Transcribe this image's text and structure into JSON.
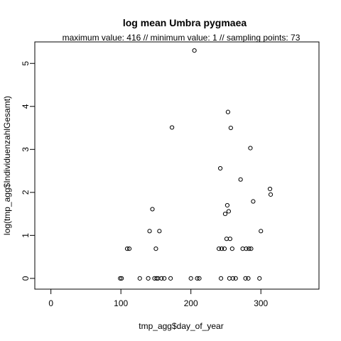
{
  "chart_data": {
    "type": "scatter",
    "title": "log mean Umbra pygmaea",
    "subtitle": "maximum value: 416  //  minimum value: 1  // sampling points: 73",
    "xlabel": "tmp_agg$day_of_year",
    "ylabel": "log(tmp_agg$IndividuenzahlGesamt)",
    "xlim": [
      -23,
      383
    ],
    "ylim": [
      -0.25,
      5.5
    ],
    "xticks": [
      0,
      100,
      200,
      300
    ],
    "yticks": [
      0,
      1,
      2,
      3,
      4,
      5
    ],
    "grid": false,
    "marker": "open-circle",
    "points": [
      {
        "x": 99,
        "y": 0
      },
      {
        "x": 101,
        "y": 0
      },
      {
        "x": 109,
        "y": 0.69
      },
      {
        "x": 112,
        "y": 0.69
      },
      {
        "x": 127,
        "y": 0
      },
      {
        "x": 139,
        "y": 0
      },
      {
        "x": 141,
        "y": 1.1
      },
      {
        "x": 145,
        "y": 1.61
      },
      {
        "x": 148,
        "y": 0
      },
      {
        "x": 150,
        "y": 0.69
      },
      {
        "x": 151,
        "y": 0
      },
      {
        "x": 153,
        "y": 0
      },
      {
        "x": 155,
        "y": 1.1
      },
      {
        "x": 158,
        "y": 0
      },
      {
        "x": 162,
        "y": 0
      },
      {
        "x": 171,
        "y": 0
      },
      {
        "x": 173,
        "y": 3.51
      },
      {
        "x": 200,
        "y": 0
      },
      {
        "x": 205,
        "y": 5.3
      },
      {
        "x": 209,
        "y": 0
      },
      {
        "x": 212,
        "y": 0
      },
      {
        "x": 240,
        "y": 0.69
      },
      {
        "x": 242,
        "y": 2.56
      },
      {
        "x": 243,
        "y": 0
      },
      {
        "x": 244,
        "y": 0.69
      },
      {
        "x": 248,
        "y": 0.69
      },
      {
        "x": 249,
        "y": 1.5
      },
      {
        "x": 251,
        "y": 0.92
      },
      {
        "x": 252,
        "y": 1.7
      },
      {
        "x": 253,
        "y": 3.87
      },
      {
        "x": 254,
        "y": 1.56
      },
      {
        "x": 255,
        "y": 0
      },
      {
        "x": 256,
        "y": 0.92
      },
      {
        "x": 257,
        "y": 3.5
      },
      {
        "x": 259,
        "y": 0.69
      },
      {
        "x": 260,
        "y": 0
      },
      {
        "x": 264,
        "y": 0
      },
      {
        "x": 271,
        "y": 2.3
      },
      {
        "x": 274,
        "y": 0.69
      },
      {
        "x": 278,
        "y": 0
      },
      {
        "x": 279,
        "y": 0.69
      },
      {
        "x": 282,
        "y": 0
      },
      {
        "x": 283,
        "y": 0.69
      },
      {
        "x": 285,
        "y": 3.03
      },
      {
        "x": 286,
        "y": 0.69
      },
      {
        "x": 289,
        "y": 1.79
      },
      {
        "x": 298,
        "y": 0
      },
      {
        "x": 300,
        "y": 1.1
      },
      {
        "x": 313,
        "y": 2.08
      },
      {
        "x": 314,
        "y": 1.95
      }
    ]
  }
}
